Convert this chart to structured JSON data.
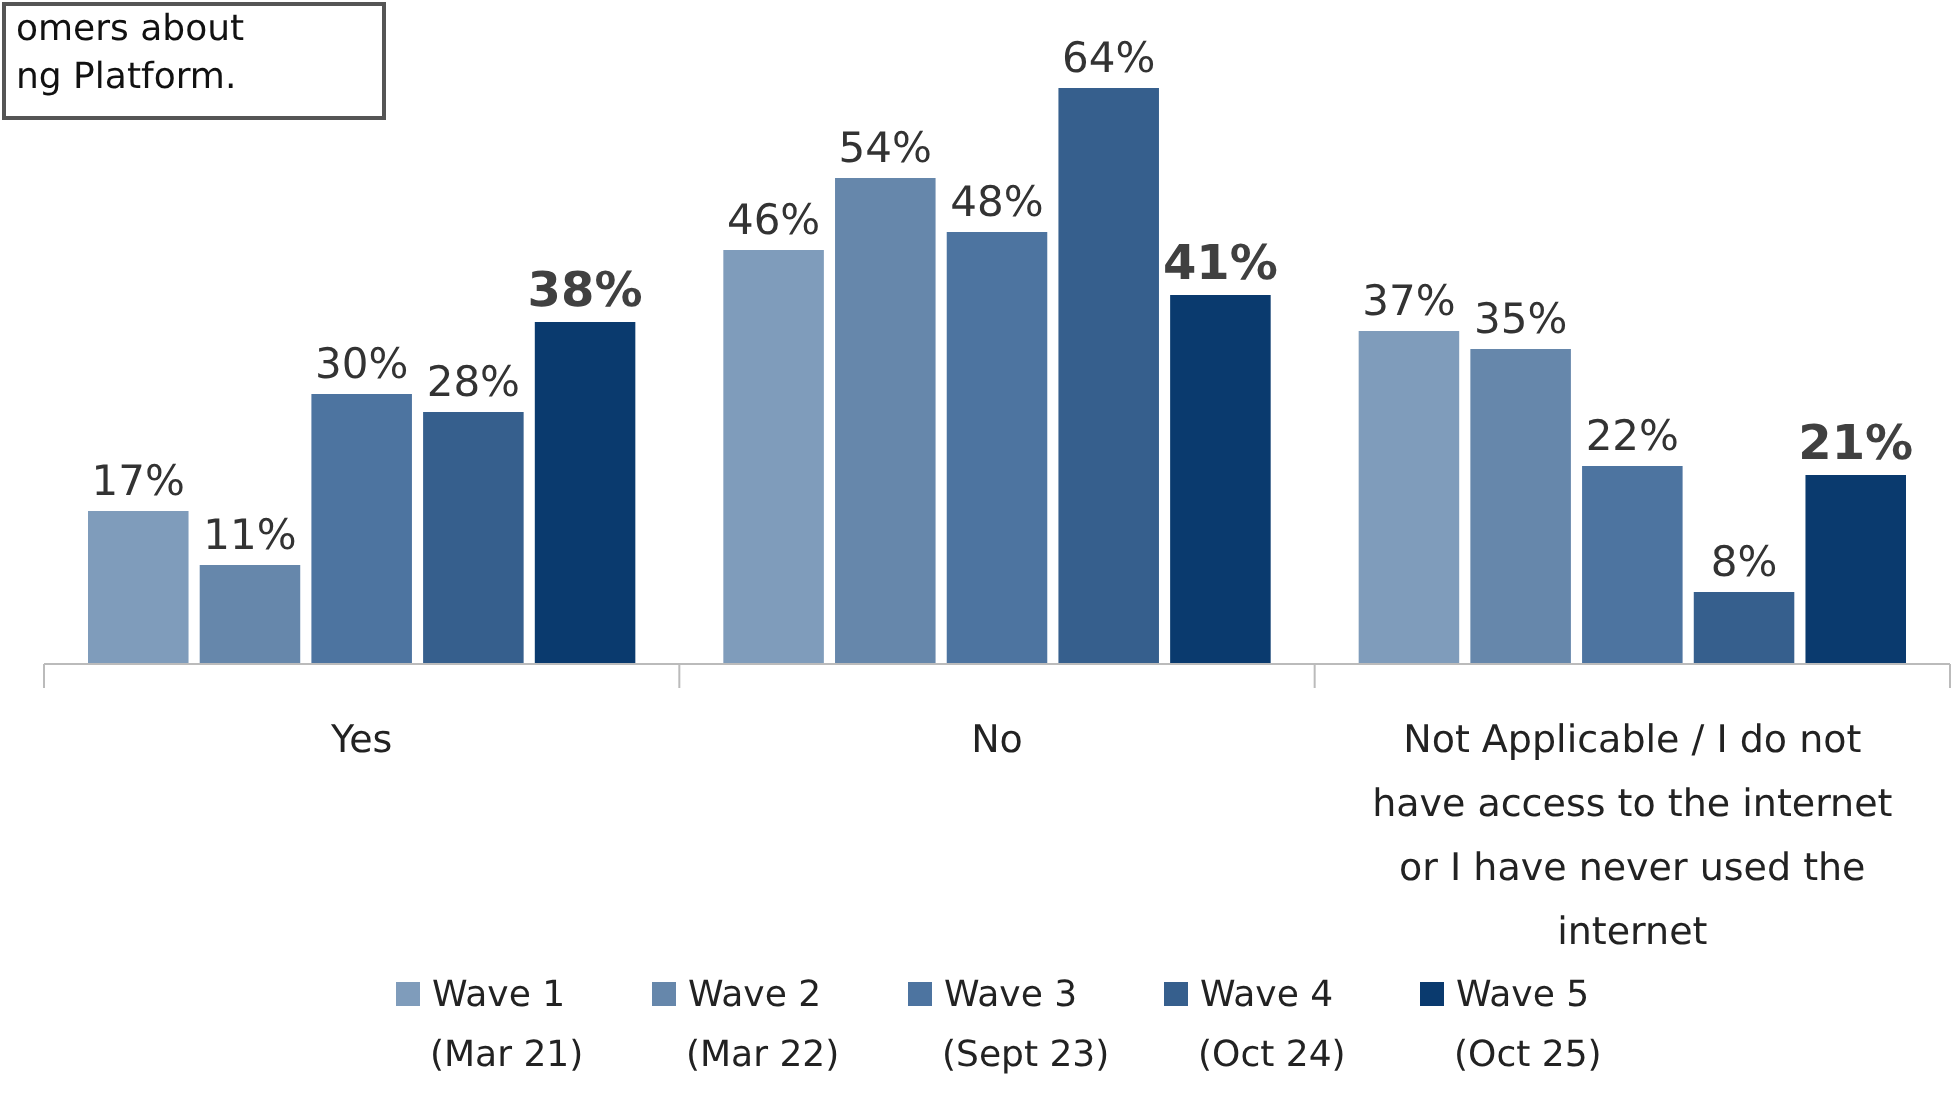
{
  "chart_data": {
    "type": "bar",
    "categories": [
      "Yes",
      "No",
      "Not Applicable / I do not have access to the internet or I have never used the internet"
    ],
    "series": [
      {
        "name": "Wave 1\n(Mar 21)",
        "color": "#7f9cbb",
        "values": [
          17,
          46,
          37
        ],
        "value_labels": [
          "17%",
          "46%",
          "37%"
        ]
      },
      {
        "name": "Wave 2\n(Mar 22)",
        "color": "#6687ab",
        "values": [
          11,
          54,
          35
        ],
        "value_labels": [
          "11%",
          "54%",
          "35%"
        ]
      },
      {
        "name": "Wave 3\n(Sept 23)",
        "color": "#4d74a0",
        "values": [
          30,
          48,
          22
        ],
        "value_labels": [
          "30%",
          "48%",
          "22%"
        ]
      },
      {
        "name": "Wave 4\n(Oct 24)",
        "color": "#365f8d",
        "values": [
          28,
          64,
          8
        ],
        "value_labels": [
          "28%",
          "64%",
          "8%"
        ]
      },
      {
        "name": "Wave 5\n(Oct 25)",
        "color": "#0a3a6e",
        "values": [
          38,
          41,
          21
        ],
        "value_labels": [
          "38%",
          "41%",
          "21%"
        ]
      }
    ],
    "legend": "bottom",
    "annotations": [
      "omers about\nng Platform."
    ]
  }
}
